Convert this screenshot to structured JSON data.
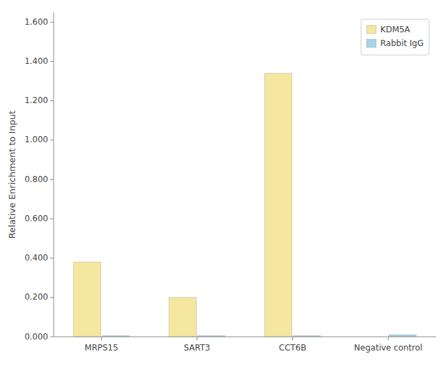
{
  "chart_data": {
    "type": "bar",
    "categories": [
      "MRPS15",
      "SART3",
      "CCT6B",
      "Negative control"
    ],
    "series": [
      {
        "name": "KDM5A",
        "color": "#F5E6A0",
        "values": [
          0.38,
          0.2,
          1.34,
          0
        ]
      },
      {
        "name": "Rabbit IgG",
        "color": "#A8D4E8",
        "values": [
          0.005,
          0.005,
          0.005,
          0.01
        ]
      }
    ],
    "ylabel": "Relative Enrichment to Input",
    "ylim": [
      0,
      1.65
    ],
    "yticks": [
      {
        "value": 0,
        "label": "0.000"
      },
      {
        "value": 0.2,
        "label": "0.200"
      },
      {
        "value": 0.4,
        "label": "0.400"
      },
      {
        "value": 0.6,
        "label": "0.600"
      },
      {
        "value": 0.8,
        "label": "0.800"
      },
      {
        "value": 1,
        "label": "1.000"
      },
      {
        "value": 1.2,
        "label": "1.200"
      },
      {
        "value": 1.4,
        "label": "1.400"
      },
      {
        "value": 1.6,
        "label": "1.600"
      }
    ],
    "grid": false,
    "legend": "upper right"
  }
}
